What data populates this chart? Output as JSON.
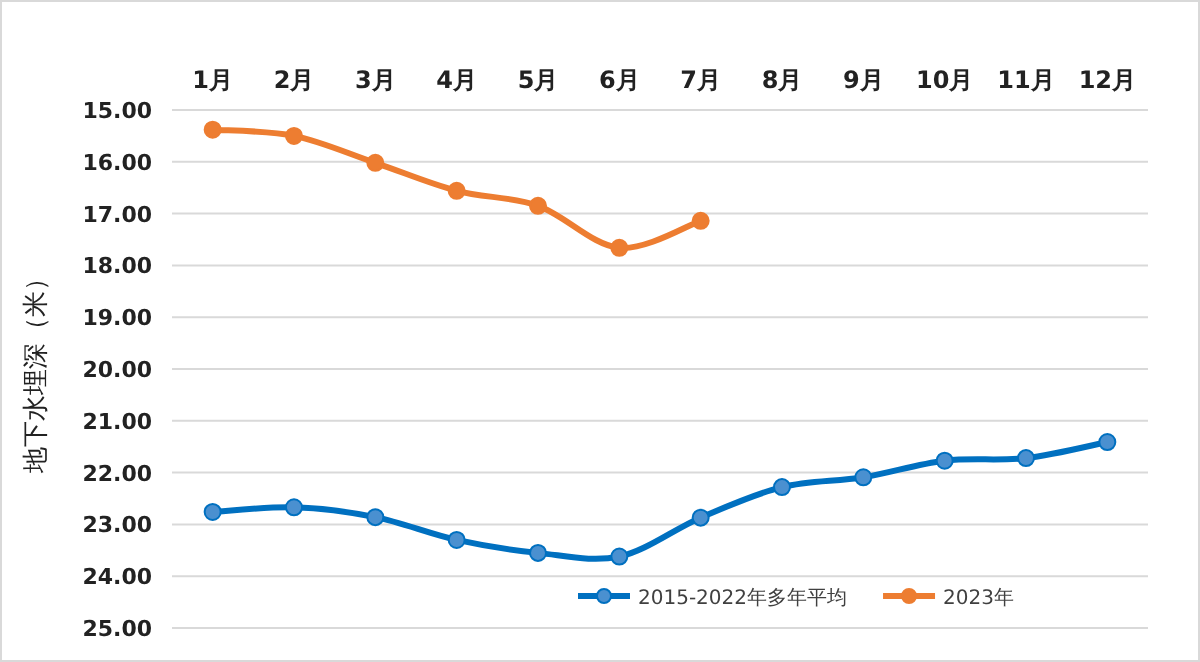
{
  "chart_data": {
    "type": "line",
    "ylabel": "地下水埋深（米）",
    "categories": [
      "1月",
      "2月",
      "3月",
      "4月",
      "5月",
      "6月",
      "7月",
      "8月",
      "9月",
      "10月",
      "11月",
      "12月"
    ],
    "series": [
      {
        "name": "2015-2022年多年平均",
        "color": "#0070c0",
        "values": [
          22.76,
          22.67,
          22.86,
          23.3,
          23.55,
          23.62,
          22.87,
          22.28,
          22.09,
          21.77,
          21.72,
          21.41
        ]
      },
      {
        "name": "2023年",
        "color": "#ed7d31",
        "values": [
          15.38,
          15.5,
          16.02,
          16.56,
          16.85,
          17.66,
          17.14,
          null,
          null,
          null,
          null,
          null
        ]
      }
    ],
    "ylim": [
      25,
      15
    ],
    "yticks": [
      {
        "value": 15,
        "label": "15.00"
      },
      {
        "value": 16,
        "label": "16.00"
      },
      {
        "value": 17,
        "label": "17.00"
      },
      {
        "value": 18,
        "label": "18.00"
      },
      {
        "value": 19,
        "label": "19.00"
      },
      {
        "value": 20,
        "label": "20.00"
      },
      {
        "value": 21,
        "label": "21.00"
      },
      {
        "value": 22,
        "label": "22.00"
      },
      {
        "value": 23,
        "label": "23.00"
      },
      {
        "value": 24,
        "label": "24.00"
      },
      {
        "value": 25,
        "label": "25.00"
      }
    ],
    "grid": "y",
    "legend": "bottom right",
    "marker": "circle",
    "line_style": "solid"
  }
}
